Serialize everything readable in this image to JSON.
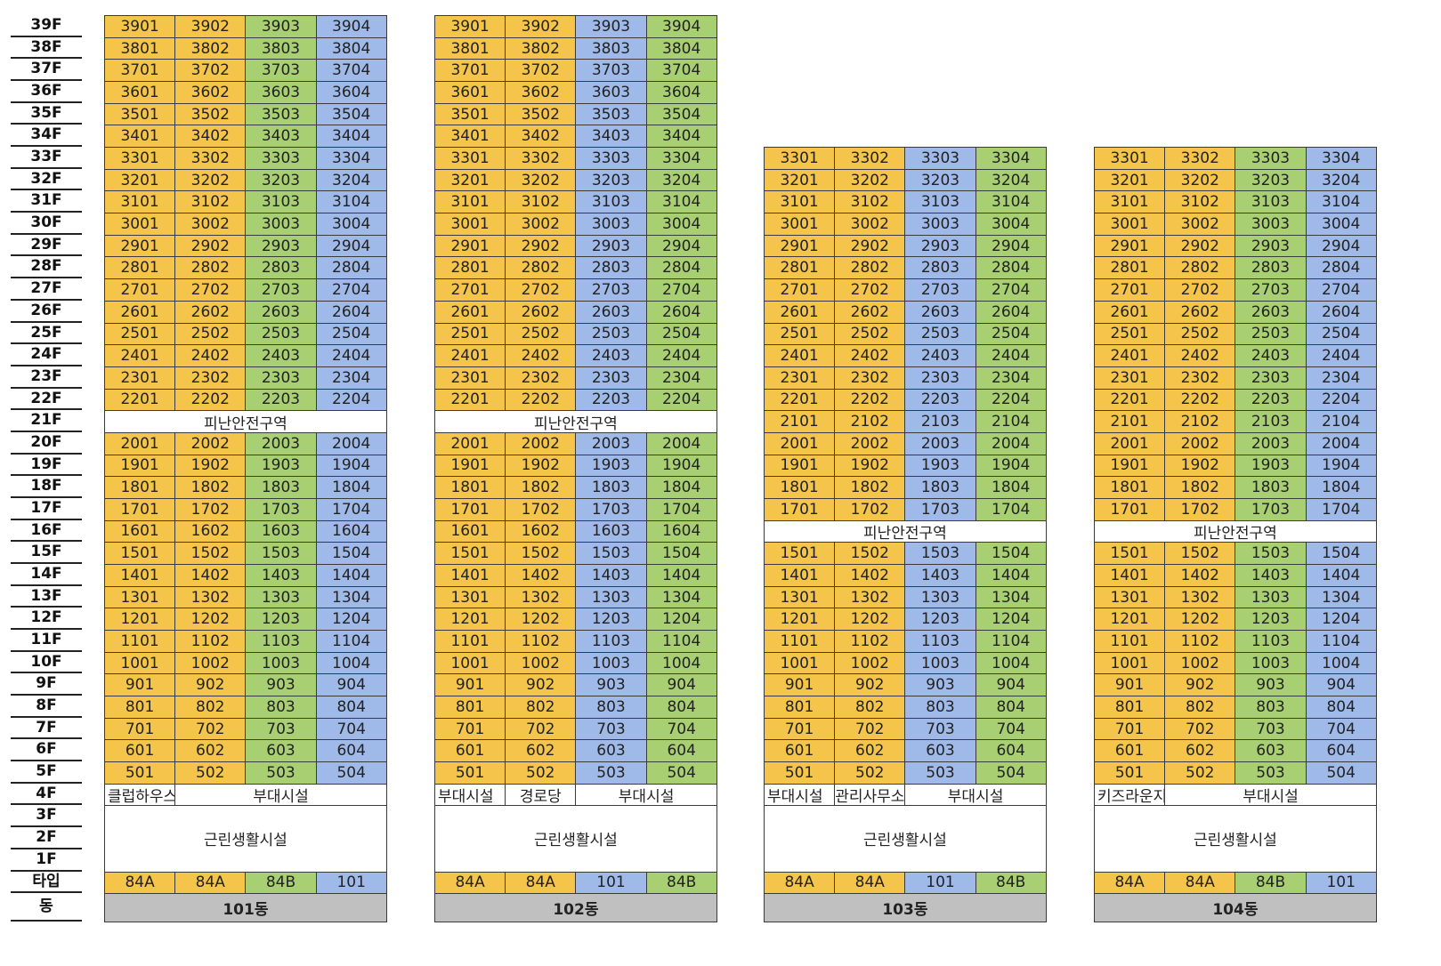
{
  "floors": [
    "39F",
    "38F",
    "37F",
    "36F",
    "35F",
    "34F",
    "33F",
    "32F",
    "31F",
    "30F",
    "29F",
    "28F",
    "27F",
    "26F",
    "25F",
    "24F",
    "23F",
    "22F",
    "21F",
    "20F",
    "19F",
    "18F",
    "17F",
    "16F",
    "15F",
    "14F",
    "13F",
    "12F",
    "11F",
    "10F",
    "9F",
    "8F",
    "7F",
    "6F",
    "5F",
    "4F",
    "3F",
    "2F",
    "1F",
    "타입",
    "동"
  ],
  "colors": {
    "type_84A": "#f4c54a",
    "type_84B": "#a9cf73",
    "type_101": "#9fb9e8",
    "building_label": "#c0c0c0",
    "facility": "#ffffff"
  },
  "buildings": [
    {
      "name": "101동",
      "top_floor": 39,
      "refuge_floor": 21,
      "refuge_label": "피난안전구역",
      "types": [
        "84A",
        "84A",
        "84B",
        "101"
      ],
      "floor4": [
        {
          "label": "클럽하우스",
          "span": 1
        },
        {
          "label": "부대시설",
          "span": 3
        }
      ],
      "commercial_label": "근린생활시설"
    },
    {
      "name": "102동",
      "top_floor": 39,
      "refuge_floor": 21,
      "refuge_label": "피난안전구역",
      "types": [
        "84A",
        "84A",
        "101",
        "84B"
      ],
      "floor4": [
        {
          "label": "부대시설",
          "span": 1
        },
        {
          "label": "경로당",
          "span": 1
        },
        {
          "label": "부대시설",
          "span": 2
        }
      ],
      "commercial_label": "근린생활시설"
    },
    {
      "name": "103동",
      "top_floor": 33,
      "refuge_floor": 16,
      "refuge_label": "피난안전구역",
      "types": [
        "84A",
        "84A",
        "101",
        "84B"
      ],
      "floor4": [
        {
          "label": "부대시설",
          "span": 1
        },
        {
          "label": "관리사무소",
          "span": 1
        },
        {
          "label": "부대시설",
          "span": 2
        }
      ],
      "commercial_label": "근린생활시설"
    },
    {
      "name": "104동",
      "top_floor": 33,
      "refuge_floor": 16,
      "refuge_label": "피난안전구역",
      "types": [
        "84A",
        "84A",
        "84B",
        "101"
      ],
      "floor4": [
        {
          "label": "키즈라운지",
          "span": 1
        },
        {
          "label": "부대시설",
          "span": 3
        }
      ],
      "commercial_label": "근린생활시설"
    }
  ]
}
